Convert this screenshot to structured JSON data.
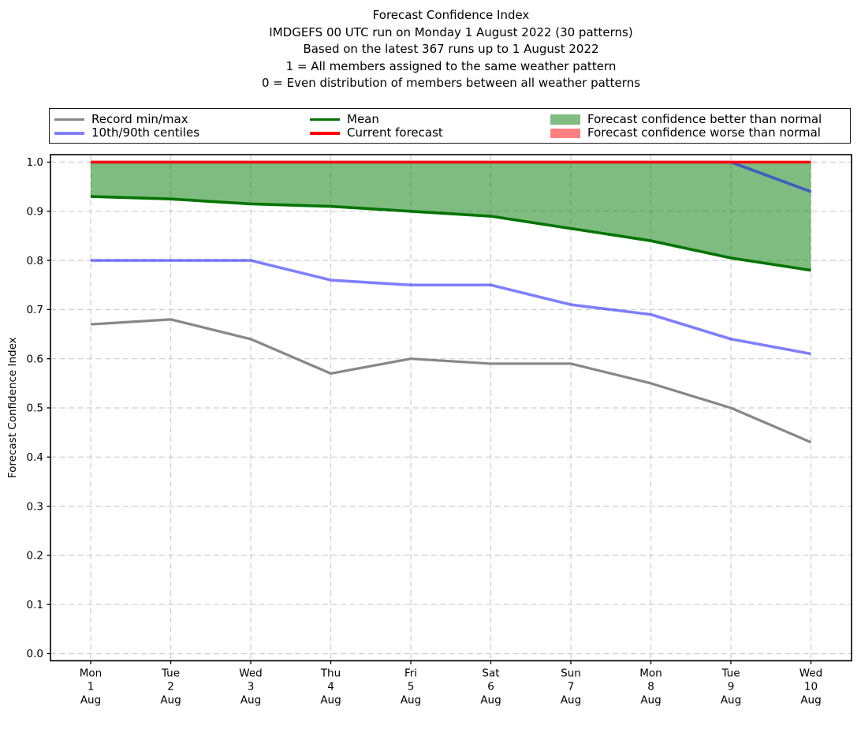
{
  "title": {
    "line1": "Forecast Confidence Index",
    "line2": "IMDGEFS 00 UTC run on Monday 1 August 2022 (30 patterns)",
    "line3": "Based on the latest 367 runs up to 1 August 2022",
    "line4": "1 = All members assigned to the same weather pattern",
    "line5": "0 = Even distribution of members between all weather patterns"
  },
  "legend": {
    "items": [
      {
        "label": "Record min/max",
        "swatch": "line",
        "color": "#878787"
      },
      {
        "label": "10th/90th centiles",
        "swatch": "line",
        "color": "#8080ff"
      },
      {
        "label": "Mean",
        "swatch": "line",
        "color": "#027402"
      },
      {
        "label": "Current forecast",
        "swatch": "line",
        "color": "#ff0000"
      },
      {
        "label": "Forecast confidence better than normal",
        "swatch": "patch",
        "color": "#80bd80"
      },
      {
        "label": "Forecast confidence worse than normal",
        "swatch": "patch",
        "color": "#ff8080"
      }
    ]
  },
  "chart_data": {
    "type": "line",
    "title": "Forecast Confidence Index",
    "xlabel": "",
    "ylabel": "Forecast Confidence Index",
    "ylim": [
      0.0,
      1.0
    ],
    "yticks": [
      "0.0",
      "0.1",
      "0.2",
      "0.3",
      "0.4",
      "0.5",
      "0.6",
      "0.7",
      "0.8",
      "0.9",
      "1.0"
    ],
    "grid": true,
    "legend_position": "top",
    "categories": [
      [
        "Mon",
        "1",
        "Aug"
      ],
      [
        "Tue",
        "2",
        "Aug"
      ],
      [
        "Wed",
        "3",
        "Aug"
      ],
      [
        "Thu",
        "4",
        "Aug"
      ],
      [
        "Fri",
        "5",
        "Aug"
      ],
      [
        "Sat",
        "6",
        "Aug"
      ],
      [
        "Sun",
        "7",
        "Aug"
      ],
      [
        "Mon",
        "8",
        "Aug"
      ],
      [
        "Tue",
        "9",
        "Aug"
      ],
      [
        "Wed",
        "10",
        "Aug"
      ]
    ],
    "series": [
      {
        "name": "Record min",
        "color": "#878787",
        "width": 3.2,
        "values": [
          0.67,
          0.68,
          0.64,
          0.57,
          0.6,
          0.59,
          0.59,
          0.55,
          0.5,
          0.43
        ]
      },
      {
        "name": "Record max",
        "color": "#878787",
        "width": 3.2,
        "values": [
          1.0,
          1.0,
          1.0,
          1.0,
          1.0,
          1.0,
          1.0,
          1.0,
          1.0,
          1.0
        ]
      },
      {
        "name": "Mean",
        "color": "#027402",
        "width": 3.6,
        "values": [
          0.93,
          0.925,
          0.915,
          0.91,
          0.9,
          0.89,
          0.865,
          0.84,
          0.805,
          0.78
        ]
      },
      {
        "name": "10th centile",
        "color": "rgba(0,0,255,0.5)",
        "width": 3.6,
        "values": [
          0.8,
          0.8,
          0.8,
          0.76,
          0.75,
          0.75,
          0.71,
          0.69,
          0.64,
          0.61
        ]
      },
      {
        "name": "90th centile",
        "color": "rgba(0,0,255,0.5)",
        "width": 3.6,
        "values": [
          1.0,
          1.0,
          1.0,
          1.0,
          1.0,
          1.0,
          1.0,
          1.0,
          1.0,
          0.94
        ]
      },
      {
        "name": "Current forecast",
        "color": "#ff0000",
        "width": 3.6,
        "values": [
          1.0,
          1.0,
          1.0,
          1.0,
          1.0,
          1.0,
          1.0,
          1.0,
          1.0,
          1.0
        ]
      }
    ],
    "fill_between": {
      "upper": "Current forecast",
      "lower": "Mean",
      "color": "rgba(0,122,0,0.5)"
    }
  }
}
